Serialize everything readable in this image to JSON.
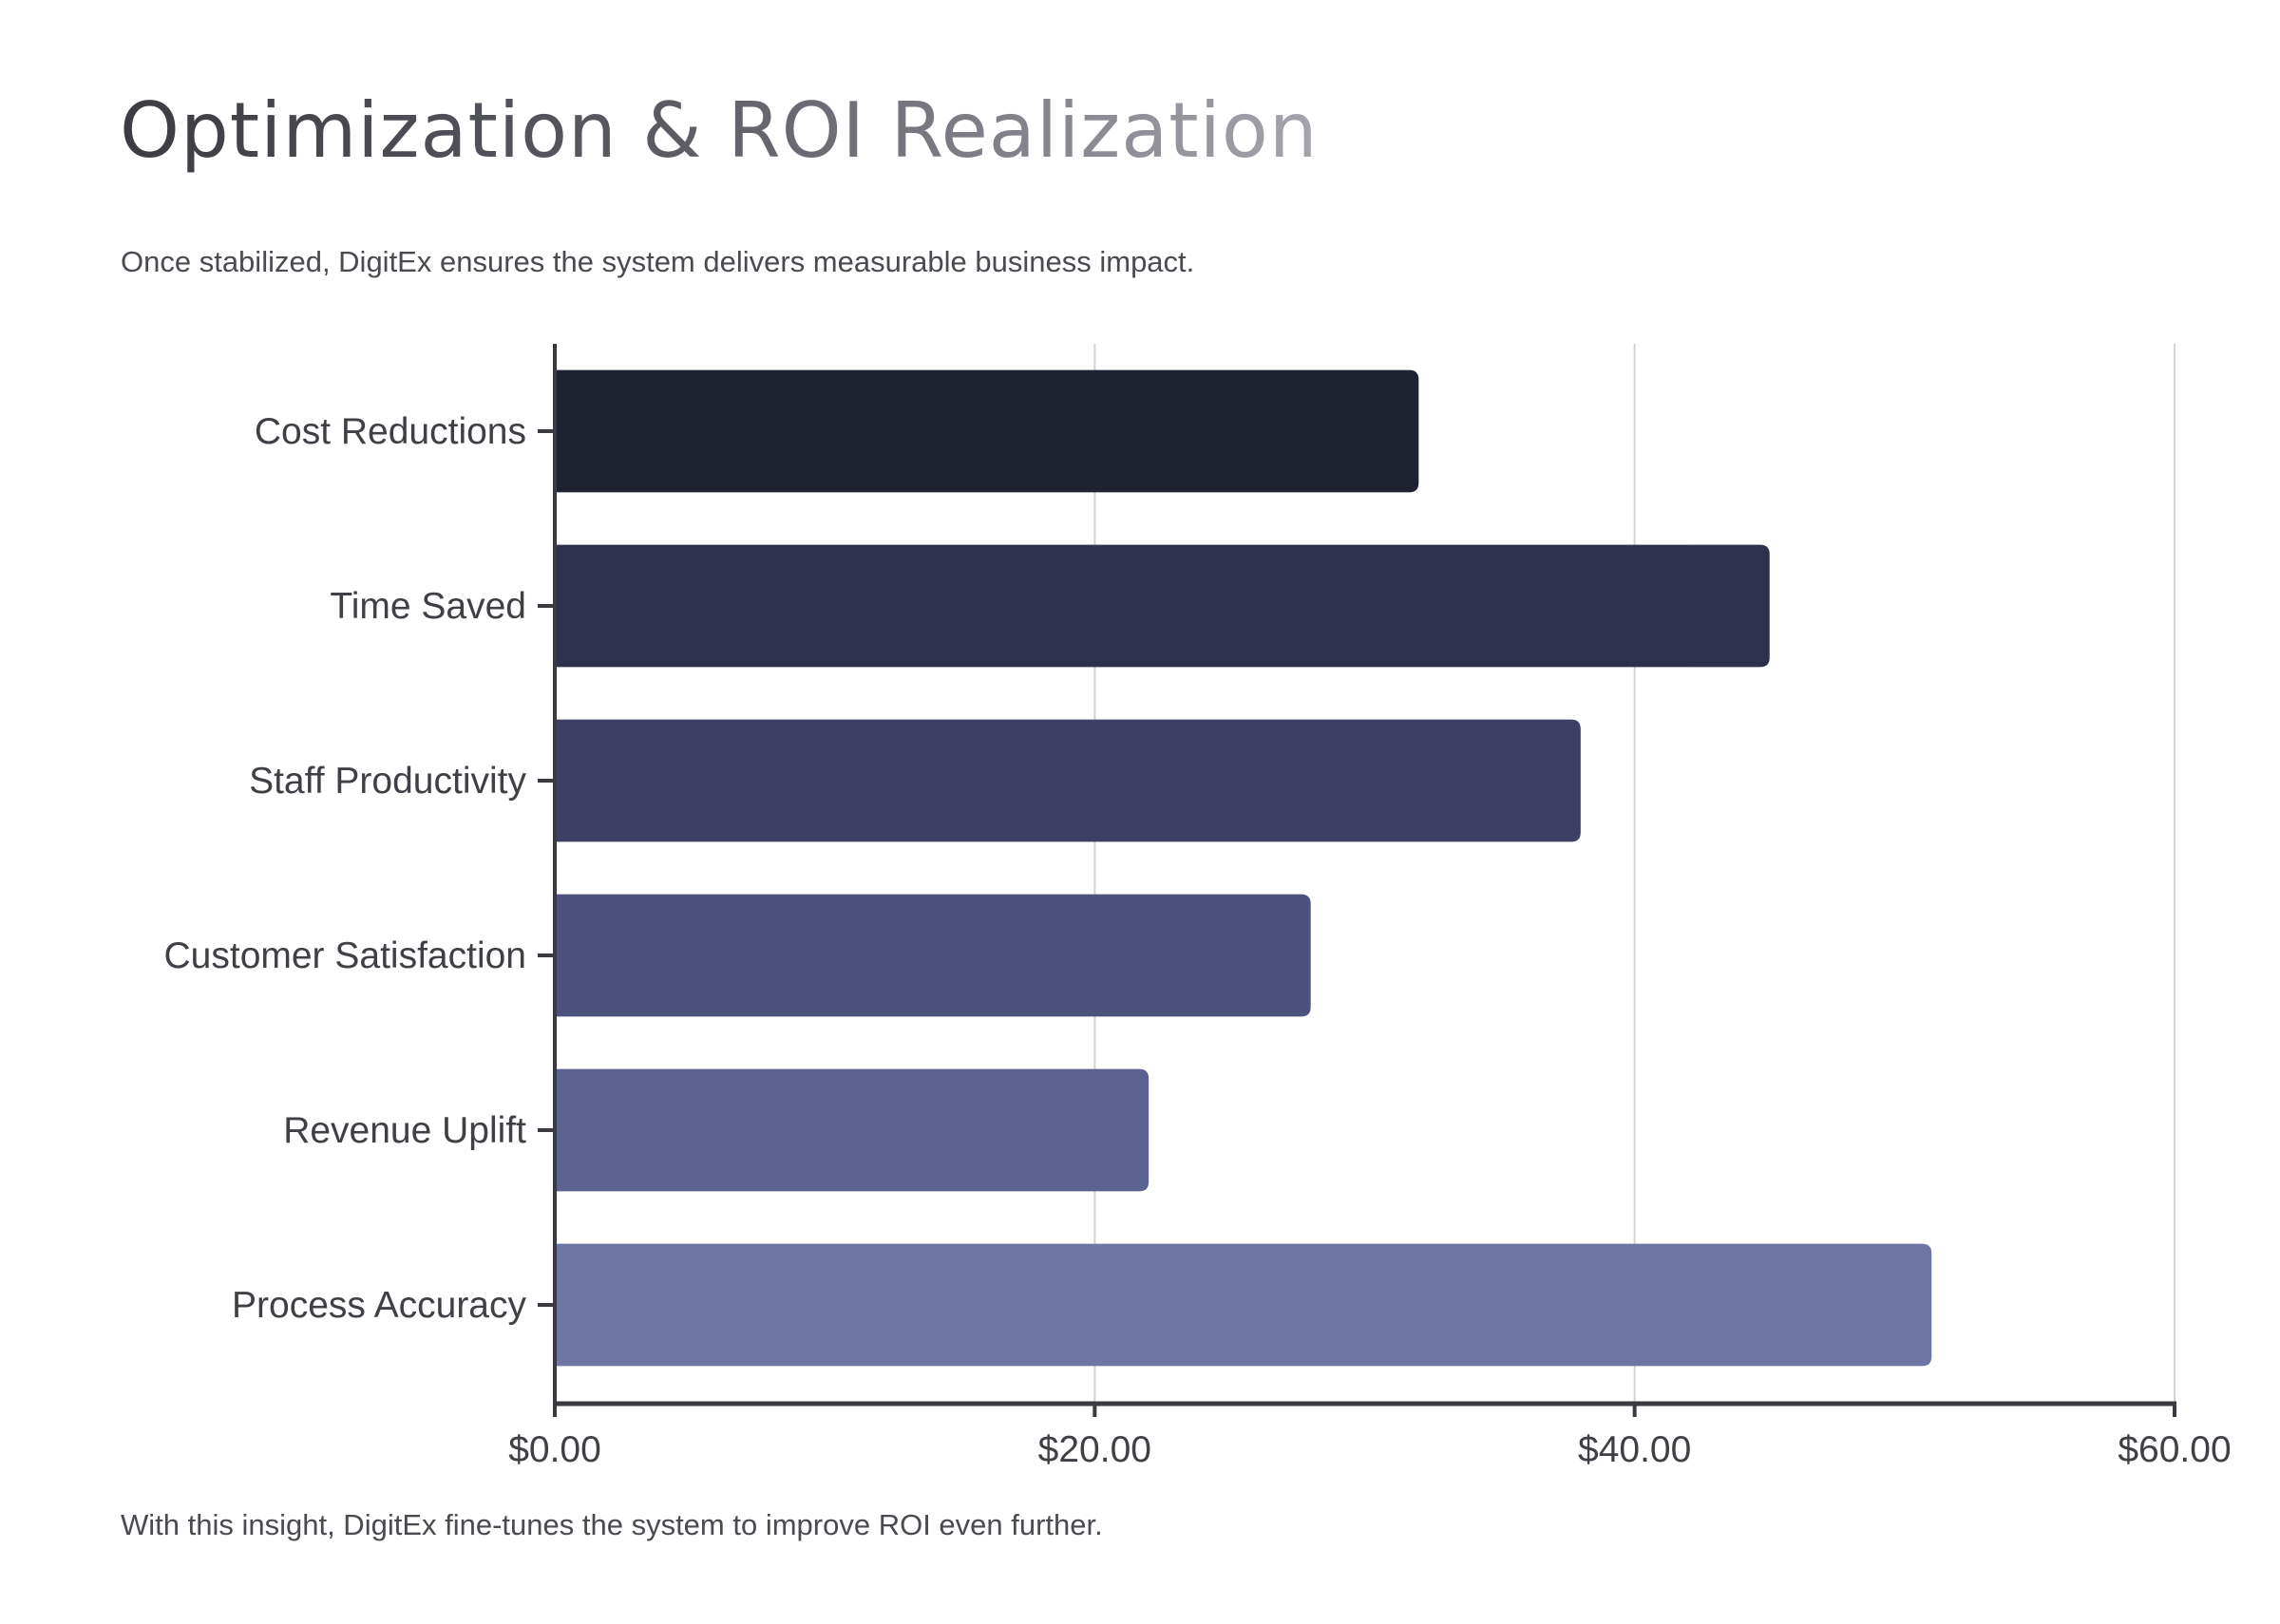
{
  "header": {
    "title": "Optimization & ROI Realization",
    "subtitle": "Once stabilized, DigitEx ensures the system delivers measurable business impact."
  },
  "footer": {
    "note": "With this insight, DigitEx fine-tunes the system to improve ROI even further."
  },
  "chart_data": {
    "type": "bar",
    "orientation": "horizontal",
    "title": "",
    "xlabel": "",
    "ylabel": "",
    "categories": [
      "Cost Reductions",
      "Time Saved",
      "Staff Productivity",
      "Customer Satisfaction",
      "Revenue Uplift",
      "Process Accuracy"
    ],
    "values": [
      32,
      45,
      38,
      28,
      22,
      51
    ],
    "xlim": [
      0,
      60
    ],
    "xticks": [
      0,
      20,
      40,
      60
    ],
    "xtick_labels": [
      "$0.00",
      "$20.00",
      "$40.00",
      "$60.00"
    ],
    "bar_colors": [
      "#1f2230",
      "#2e314b",
      "#3d4062",
      "#4d527c",
      "#5c6290",
      "#6e76a4"
    ],
    "axis_color": "#3a3a40",
    "grid_color": "#d4d4d8",
    "grid": true,
    "legend": "none"
  }
}
